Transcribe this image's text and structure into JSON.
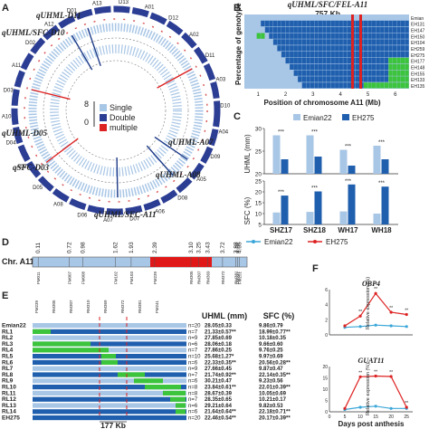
{
  "panels": {
    "a": "A",
    "b": "B",
    "c": "C",
    "d": "D",
    "e": "E",
    "f": "F"
  },
  "panel_a": {
    "qtl_labels": [
      "qUHML-D11",
      "qUHML/SFC-D10",
      "qUHML-D05",
      "qSFC-D03",
      "qUHML-A07",
      "qUHML-A08",
      "qUHML/SFC-A11"
    ],
    "chromosomes": [
      "D13",
      "A01",
      "D12",
      "A02",
      "D11",
      "A03",
      "D10",
      "A04",
      "D09",
      "A05",
      "D08",
      "A06",
      "D07",
      "A07",
      "D06",
      "A08",
      "D05",
      "A09",
      "D04",
      "A10",
      "D03",
      "A11",
      "D02",
      "A12",
      "D01",
      "A13"
    ],
    "legend": {
      "single": "Single",
      "double": "Double",
      "multiple": "multiple"
    },
    "scale": {
      "top": "8",
      "bottom": "0"
    }
  },
  "panel_b": {
    "title": "qUHML/SFC/FEL-A11",
    "size": "757 Kb",
    "ylabel": "Percentage of genotype",
    "xlabel": "Position of chromosome A11 (Mb)",
    "ticks": [
      "1",
      "2",
      "3",
      "4",
      "5",
      "6"
    ],
    "rows": [
      "Emian",
      "EH131",
      "EH147",
      "EH150",
      "EH104",
      "EH259",
      "EH275",
      "EH177",
      "EH148",
      "EH155",
      "EH133",
      "EH135"
    ]
  },
  "panel_c": {
    "legend": [
      "Emian22",
      "EH275"
    ],
    "ylabel_top": "UHML (mm)",
    "ylabel_bottom": "SFC (%)",
    "sig": "***",
    "chart_data": [
      {
        "type": "bar",
        "categories": [
          "SHZ17",
          "SHZ18",
          "WH17",
          "WH18"
        ],
        "series": [
          {
            "name": "Emian22",
            "values": [
              28.5,
              28.5,
              25.3,
              26.2
            ]
          },
          {
            "name": "EH275",
            "values": [
              23.2,
              23.8,
              21.8,
              23.2
            ]
          }
        ],
        "ylabel": "UHML (mm)",
        "ylim": [
          20,
          30
        ],
        "yticks": [
          "20",
          "25",
          "30"
        ]
      },
      {
        "type": "bar",
        "categories": [
          "SHZ17",
          "SHZ18",
          "WH17",
          "WH18"
        ],
        "series": [
          {
            "name": "Emian22",
            "values": [
              10.5,
              10.8,
              11.0,
              10.0
            ]
          },
          {
            "name": "EH275",
            "values": [
              18.3,
              20.2,
              23.4,
              22.4
            ]
          }
        ],
        "ylabel": "SFC (%)",
        "ylim": [
          5,
          25
        ],
        "yticks": [
          "5",
          "10",
          "15",
          "20",
          "25"
        ]
      }
    ]
  },
  "panel_d": {
    "chr_label": "Chr. A11",
    "positions": [
      "0.11",
      "0.72",
      "0.98",
      "1.62",
      "1.93",
      "2.39",
      "3.10",
      "3.25",
      "3.43",
      "3.72",
      "3.98",
      "4.01",
      "4.05"
    ],
    "markers": [
      "FM011",
      "FM007",
      "FM008",
      "FM102",
      "FM103",
      "FM239",
      "RM305",
      "RM307",
      "RM369",
      "RM372",
      "RM381",
      "FM241",
      "FM251"
    ]
  },
  "panel_e": {
    "markers": [
      "FM239",
      "RM305",
      "RM307",
      "RM310",
      "RM369",
      "RM372",
      "RM381",
      "FM241"
    ],
    "header_uhml": "UHML (mm)",
    "header_sfc": "SFC (%)",
    "distance": "177 Kb",
    "rows": [
      {
        "name": "Emian22",
        "n": "n=20",
        "uhml": "28.05±0.33",
        "sfc": "9.86±0.79"
      },
      {
        "name": "RL1",
        "n": "n=7",
        "uhml": "21.33±0.57**",
        "sfc": "18.99±0.77**"
      },
      {
        "name": "RL2",
        "n": "n=9",
        "uhml": "27.85±0.69",
        "sfc": "10.18±0.35"
      },
      {
        "name": "RL3",
        "n": "n=6",
        "uhml": "28.06±0.18",
        "sfc": "9.66±0.60"
      },
      {
        "name": "RL4",
        "n": "n=7",
        "uhml": "27.86±0.25",
        "sfc": "9.76±0.25"
      },
      {
        "name": "RL5",
        "n": "n=10",
        "uhml": "25.68±1.27*",
        "sfc": "9.97±0.69"
      },
      {
        "name": "RL6",
        "n": "n=6",
        "uhml": "22.33±0.35**",
        "sfc": "20.56±0.28**"
      },
      {
        "name": "RL7",
        "n": "n=9",
        "uhml": "27.66±0.45",
        "sfc": "9.87±0.47"
      },
      {
        "name": "RL8",
        "n": "n=7",
        "uhml": "21.74±0.92**",
        "sfc": "22.14±0.35**"
      },
      {
        "name": "RL9",
        "n": "n=6",
        "uhml": "30.21±0.47",
        "sfc": "9.23±0.56"
      },
      {
        "name": "RL10",
        "n": "n=8",
        "uhml": "23.84±0.61**",
        "sfc": "22.01±0.39**"
      },
      {
        "name": "RL11",
        "n": "n=8",
        "uhml": "28.67±0.39",
        "sfc": "10.05±0.69"
      },
      {
        "name": "RL12",
        "n": "n=7",
        "uhml": "28.35±0.65",
        "sfc": "10.21±0.17"
      },
      {
        "name": "RL13",
        "n": "n=6",
        "uhml": "29.21±0.64",
        "sfc": "9.82±0.53"
      },
      {
        "name": "RL14",
        "n": "n=6",
        "uhml": "21.64±0.64**",
        "sfc": "22.18±0.71**"
      },
      {
        "name": "EH275",
        "n": "n=20",
        "uhml": "22.46±0.54**",
        "sfc": "20.17±0.39**"
      }
    ]
  },
  "panel_f": {
    "legend": [
      "Emian22",
      "EH275"
    ],
    "xlabel": "Days post anthesis",
    "ylabel": "Relative expression (%)",
    "sig": "**",
    "chart_data": [
      {
        "type": "line",
        "title": "OBP4",
        "x": [
          5,
          10,
          15,
          20,
          25
        ],
        "xticks": [
          "0",
          "5",
          "10",
          "15",
          "20",
          "25"
        ],
        "xlim": [
          0,
          27
        ],
        "ylim": [
          0,
          6
        ],
        "yticks": [
          "0",
          "2",
          "4",
          "6"
        ],
        "series": [
          {
            "name": "Emian22",
            "values": [
              1.0,
              1.1,
              1.3,
              1.2,
              1.1
            ]
          },
          {
            "name": "EH275",
            "values": [
              1.2,
              2.5,
              5.5,
              3.0,
              2.7
            ]
          }
        ]
      },
      {
        "type": "line",
        "title": "GUAT11",
        "x": [
          5,
          10,
          15,
          20,
          25
        ],
        "xticks": [
          "0",
          "5",
          "10",
          "15",
          "20",
          "25"
        ],
        "xlim": [
          0,
          27
        ],
        "ylim": [
          0,
          20
        ],
        "yticks": [
          "0",
          "5",
          "10",
          "15",
          "20"
        ],
        "series": [
          {
            "name": "Emian22",
            "values": [
              1.0,
              2.0,
              2.5,
              1.5,
              1.5
            ]
          },
          {
            "name": "EH275",
            "values": [
              1.5,
              15.5,
              15.8,
              15.6,
              2.0
            ]
          }
        ]
      }
    ]
  },
  "colors": {
    "light_blue": "#a8c6e6",
    "dark_blue": "#1f5fae",
    "navy": "#2c3e94",
    "green": "#3cc43c",
    "red": "#dd2222",
    "cyan": "#3aa6d8"
  }
}
